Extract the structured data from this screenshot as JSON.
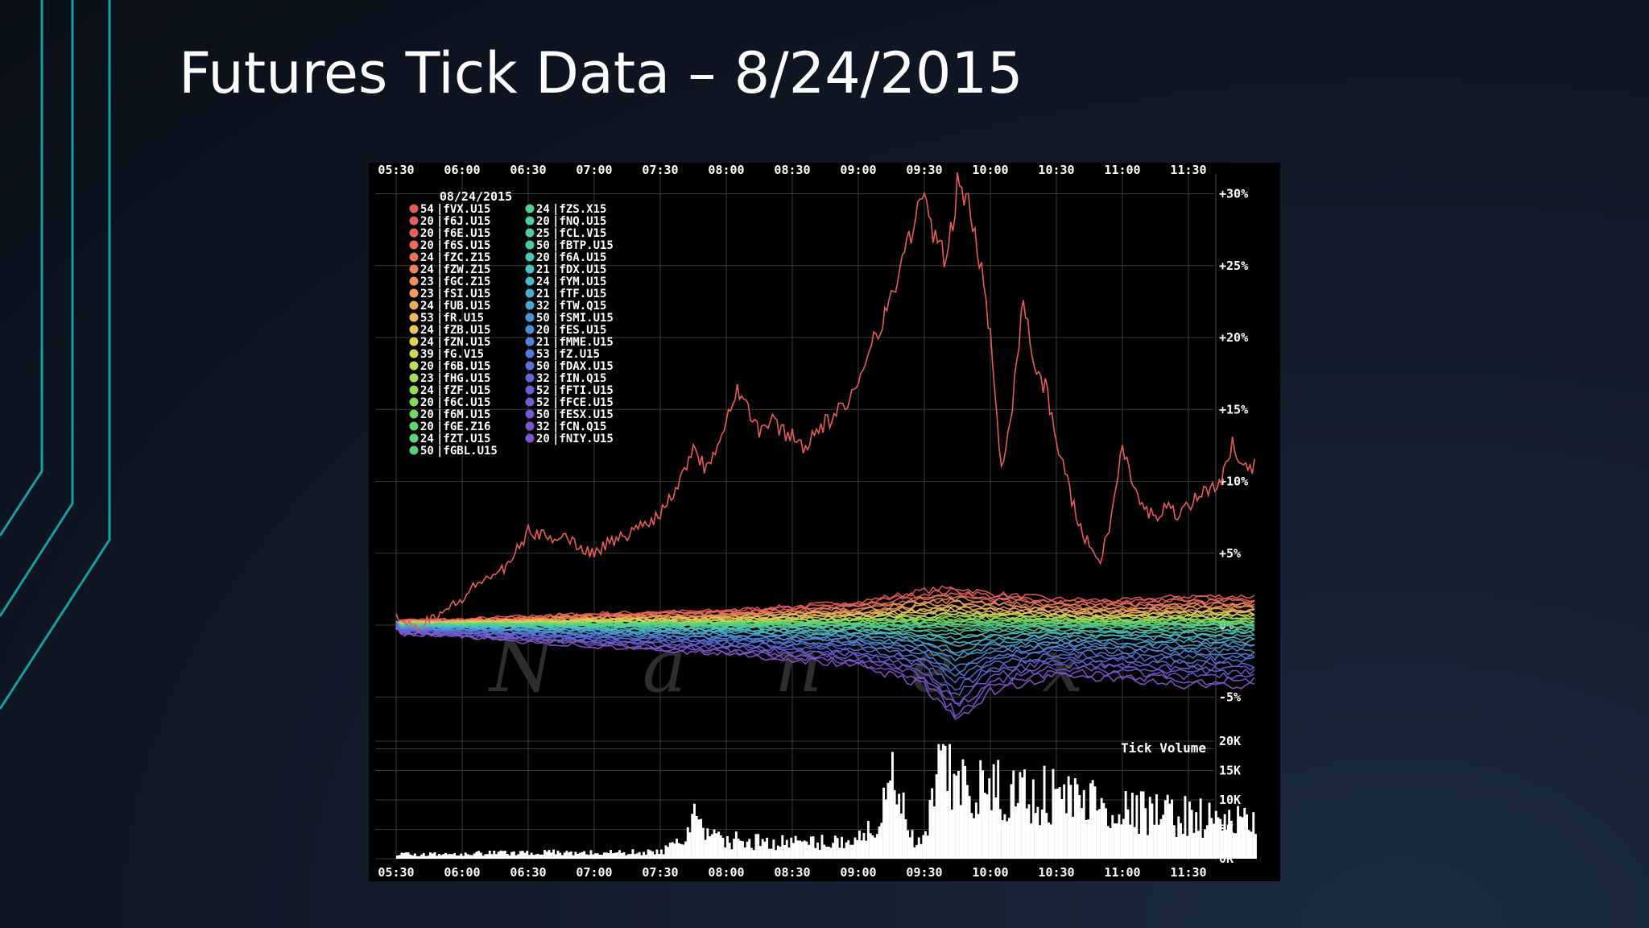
{
  "slide": {
    "title": "Futures Tick Data – 8/24/2015",
    "accent_color": "#1aa8a8"
  },
  "chart_data": {
    "type": "line",
    "date_label": "08/24/2015",
    "watermark": "N a n e x",
    "x_ticks": [
      "05:30",
      "06:00",
      "06:30",
      "07:00",
      "07:30",
      "08:00",
      "08:30",
      "09:00",
      "09:30",
      "10:00",
      "10:30",
      "11:00",
      "11:30"
    ],
    "y_ticks": [
      "+30%",
      "+25%",
      "+20%",
      "+15%",
      "+10%",
      "+5%",
      "0%",
      "-5%"
    ],
    "ylim": [
      -7,
      31
    ],
    "volume_title": "Tick Volume",
    "volume_ticks": [
      "20K",
      "15K",
      "10K",
      "5K",
      "0K"
    ],
    "volume_ylim": [
      0,
      20000
    ],
    "grid": true,
    "legend_placement": "top-left",
    "legend": [
      {
        "count": "54",
        "symbol": "fVX.U15",
        "color": "#e65a5a"
      },
      {
        "count": "20",
        "symbol": "f6J.U15",
        "color": "#e65a5a"
      },
      {
        "count": "20",
        "symbol": "f6E.U15",
        "color": "#e8605a"
      },
      {
        "count": "20",
        "symbol": "f6S.U15",
        "color": "#e8685a"
      },
      {
        "count": "24",
        "symbol": "fZC.Z15",
        "color": "#ea7458"
      },
      {
        "count": "24",
        "symbol": "fZW.Z15",
        "color": "#ec8258"
      },
      {
        "count": "23",
        "symbol": "fGC.Z15",
        "color": "#ee9058"
      },
      {
        "count": "23",
        "symbol": "fSI.U15",
        "color": "#f09c5a"
      },
      {
        "count": "24",
        "symbol": "fUB.U15",
        "color": "#f0aa5a"
      },
      {
        "count": "53",
        "symbol": "fR.U15",
        "color": "#f0b85a"
      },
      {
        "count": "24",
        "symbol": "fZB.U15",
        "color": "#ecc65a"
      },
      {
        "count": "24",
        "symbol": "fZN.U15",
        "color": "#e2d05a"
      },
      {
        "count": "39",
        "symbol": "fG.V15",
        "color": "#d0d85a"
      },
      {
        "count": "20",
        "symbol": "f6B.U15",
        "color": "#bcdc5a"
      },
      {
        "count": "23",
        "symbol": "fHG.U15",
        "color": "#a8dc5a"
      },
      {
        "count": "24",
        "symbol": "fZF.U15",
        "color": "#94dc5c"
      },
      {
        "count": "20",
        "symbol": "f6C.U15",
        "color": "#80da60"
      },
      {
        "count": "20",
        "symbol": "f6M.U15",
        "color": "#70d866"
      },
      {
        "count": "20",
        "symbol": "fGE.Z16",
        "color": "#64d66e"
      },
      {
        "count": "24",
        "symbol": "fZT.U15",
        "color": "#5cd478"
      },
      {
        "count": "50",
        "symbol": "fGBL.U15",
        "color": "#56d282"
      },
      {
        "count": "24",
        "symbol": "fZS.X15",
        "color": "#52d08c"
      },
      {
        "count": "20",
        "symbol": "fNQ.U15",
        "color": "#50ce98"
      },
      {
        "count": "25",
        "symbol": "fCL.V15",
        "color": "#4ecca4"
      },
      {
        "count": "50",
        "symbol": "fBTP.U15",
        "color": "#4ccab0"
      },
      {
        "count": "20",
        "symbol": "f6A.U15",
        "color": "#4ac6bc"
      },
      {
        "count": "21",
        "symbol": "fDX.U15",
        "color": "#4ac0c6"
      },
      {
        "count": "24",
        "symbol": "fYM.U15",
        "color": "#4ab8cc"
      },
      {
        "count": "21",
        "symbol": "fTF.U15",
        "color": "#4aaed0"
      },
      {
        "count": "32",
        "symbol": "fTW.Q15",
        "color": "#4aa4d4"
      },
      {
        "count": "50",
        "symbol": "fSMI.U15",
        "color": "#4c98d6"
      },
      {
        "count": "20",
        "symbol": "fES.U15",
        "color": "#4e8ed8"
      },
      {
        "count": "21",
        "symbol": "fMME.U15",
        "color": "#5284da"
      },
      {
        "count": "53",
        "symbol": "fZ.U15",
        "color": "#567ada"
      },
      {
        "count": "50",
        "symbol": "fDAX.U15",
        "color": "#5a70da"
      },
      {
        "count": "32",
        "symbol": "fIN.Q15",
        "color": "#6068d8"
      },
      {
        "count": "52",
        "symbol": "fFTI.U15",
        "color": "#6662d6"
      },
      {
        "count": "52",
        "symbol": "fFCE.U15",
        "color": "#6c5ed4"
      },
      {
        "count": "50",
        "symbol": "fESX.U15",
        "color": "#745ad2"
      },
      {
        "count": "32",
        "symbol": "fCN.Q15",
        "color": "#7c58d0"
      },
      {
        "count": "20",
        "symbol": "fNIY.U15",
        "color": "#8456ce"
      }
    ],
    "vix_series": {
      "name": "fVX.U15",
      "color": "#e65a5a",
      "points": [
        [
          "05:30",
          0.8
        ],
        [
          "05:35",
          0.2
        ],
        [
          "05:40",
          -0.2
        ],
        [
          "05:45",
          0.5
        ],
        [
          "05:50",
          0.8
        ],
        [
          "05:55",
          1.3
        ],
        [
          "06:00",
          1.8
        ],
        [
          "06:05",
          2.6
        ],
        [
          "06:10",
          3.2
        ],
        [
          "06:15",
          3.6
        ],
        [
          "06:20",
          3.9
        ],
        [
          "06:25",
          5.2
        ],
        [
          "06:30",
          6.5
        ],
        [
          "06:35",
          6.3
        ],
        [
          "06:40",
          6.0
        ],
        [
          "06:45",
          6.4
        ],
        [
          "06:50",
          5.8
        ],
        [
          "06:55",
          5.3
        ],
        [
          "07:00",
          5.0
        ],
        [
          "07:05",
          5.6
        ],
        [
          "07:10",
          5.9
        ],
        [
          "07:15",
          6.3
        ],
        [
          "07:20",
          6.8
        ],
        [
          "07:25",
          7.2
        ],
        [
          "07:30",
          7.8
        ],
        [
          "07:35",
          9.0
        ],
        [
          "07:40",
          10.5
        ],
        [
          "07:45",
          12.5
        ],
        [
          "07:50",
          11.0
        ],
        [
          "07:55",
          12.2
        ],
        [
          "08:00",
          14.5
        ],
        [
          "08:05",
          16.5
        ],
        [
          "08:10",
          15.0
        ],
        [
          "08:15",
          13.5
        ],
        [
          "08:20",
          14.2
        ],
        [
          "08:25",
          13.6
        ],
        [
          "08:30",
          13.2
        ],
        [
          "08:35",
          12.4
        ],
        [
          "08:40",
          13.3
        ],
        [
          "08:45",
          14.0
        ],
        [
          "08:50",
          14.8
        ],
        [
          "08:55",
          15.0
        ],
        [
          "09:00",
          17.0
        ],
        [
          "09:05",
          19.5
        ],
        [
          "09:10",
          21.0
        ],
        [
          "09:15",
          22.5
        ],
        [
          "09:20",
          25.5
        ],
        [
          "09:25",
          28.0
        ],
        [
          "09:30",
          29.5
        ],
        [
          "09:35",
          27.0
        ],
        [
          "09:40",
          25.0
        ],
        [
          "09:45",
          30.5
        ],
        [
          "09:50",
          29.5
        ],
        [
          "09:55",
          25.5
        ],
        [
          "10:00",
          20.0
        ],
        [
          "10:05",
          11.0
        ],
        [
          "10:10",
          15.5
        ],
        [
          "10:15",
          22.8
        ],
        [
          "10:20",
          18.0
        ],
        [
          "10:25",
          16.5
        ],
        [
          "10:30",
          13.0
        ],
        [
          "10:35",
          10.0
        ],
        [
          "10:40",
          7.0
        ],
        [
          "10:45",
          5.5
        ],
        [
          "10:50",
          4.5
        ],
        [
          "10:55",
          7.5
        ],
        [
          "11:00",
          12.5
        ],
        [
          "11:05",
          9.5
        ],
        [
          "11:10",
          8.0
        ],
        [
          "11:15",
          7.6
        ],
        [
          "11:20",
          8.2
        ],
        [
          "11:25",
          7.8
        ],
        [
          "11:30",
          8.4
        ],
        [
          "11:35",
          9.0
        ],
        [
          "11:40",
          9.6
        ],
        [
          "11:45",
          10.0
        ],
        [
          "11:50",
          12.5
        ],
        [
          "11:55",
          11.5
        ],
        [
          "12:00",
          11.0
        ]
      ]
    },
    "other_series_shape": {
      "description": "",
      "spread": [
        [
          "05:30",
          0.3,
          -0.6
        ],
        [
          "06:00",
          0.4,
          -0.8
        ],
        [
          "07:00",
          0.8,
          -1.5
        ],
        [
          "08:00",
          1.0,
          -2.0
        ],
        [
          "09:00",
          1.6,
          -2.8
        ],
        [
          "09:30",
          2.4,
          -4.2
        ],
        [
          "09:45",
          2.6,
          -6.8
        ],
        [
          "10:00",
          2.2,
          -4.6
        ],
        [
          "10:30",
          1.8,
          -3.5
        ],
        [
          "11:00",
          1.7,
          -3.8
        ],
        [
          "11:30",
          2.0,
          -4.2
        ]
      ]
    },
    "volume_profile": [
      [
        "05:30",
        800
      ],
      [
        "06:00",
        1000
      ],
      [
        "06:30",
        1200
      ],
      [
        "07:00",
        1100
      ],
      [
        "07:30",
        1300
      ],
      [
        "07:40",
        3500
      ],
      [
        "07:45",
        9000
      ],
      [
        "07:50",
        4000
      ],
      [
        "08:00",
        3500
      ],
      [
        "08:30",
        3000
      ],
      [
        "08:50",
        3200
      ],
      [
        "09:00",
        4000
      ],
      [
        "09:10",
        7500
      ],
      [
        "09:15",
        15000
      ],
      [
        "09:20",
        9000
      ],
      [
        "09:25",
        2500
      ],
      [
        "09:30",
        3500
      ],
      [
        "09:35",
        16500
      ],
      [
        "09:45",
        14000
      ],
      [
        "10:00",
        12500
      ],
      [
        "10:30",
        12000
      ],
      [
        "10:45",
        11000
      ],
      [
        "11:00",
        9000
      ],
      [
        "11:30",
        8000
      ],
      [
        "12:00",
        6500
      ]
    ]
  }
}
